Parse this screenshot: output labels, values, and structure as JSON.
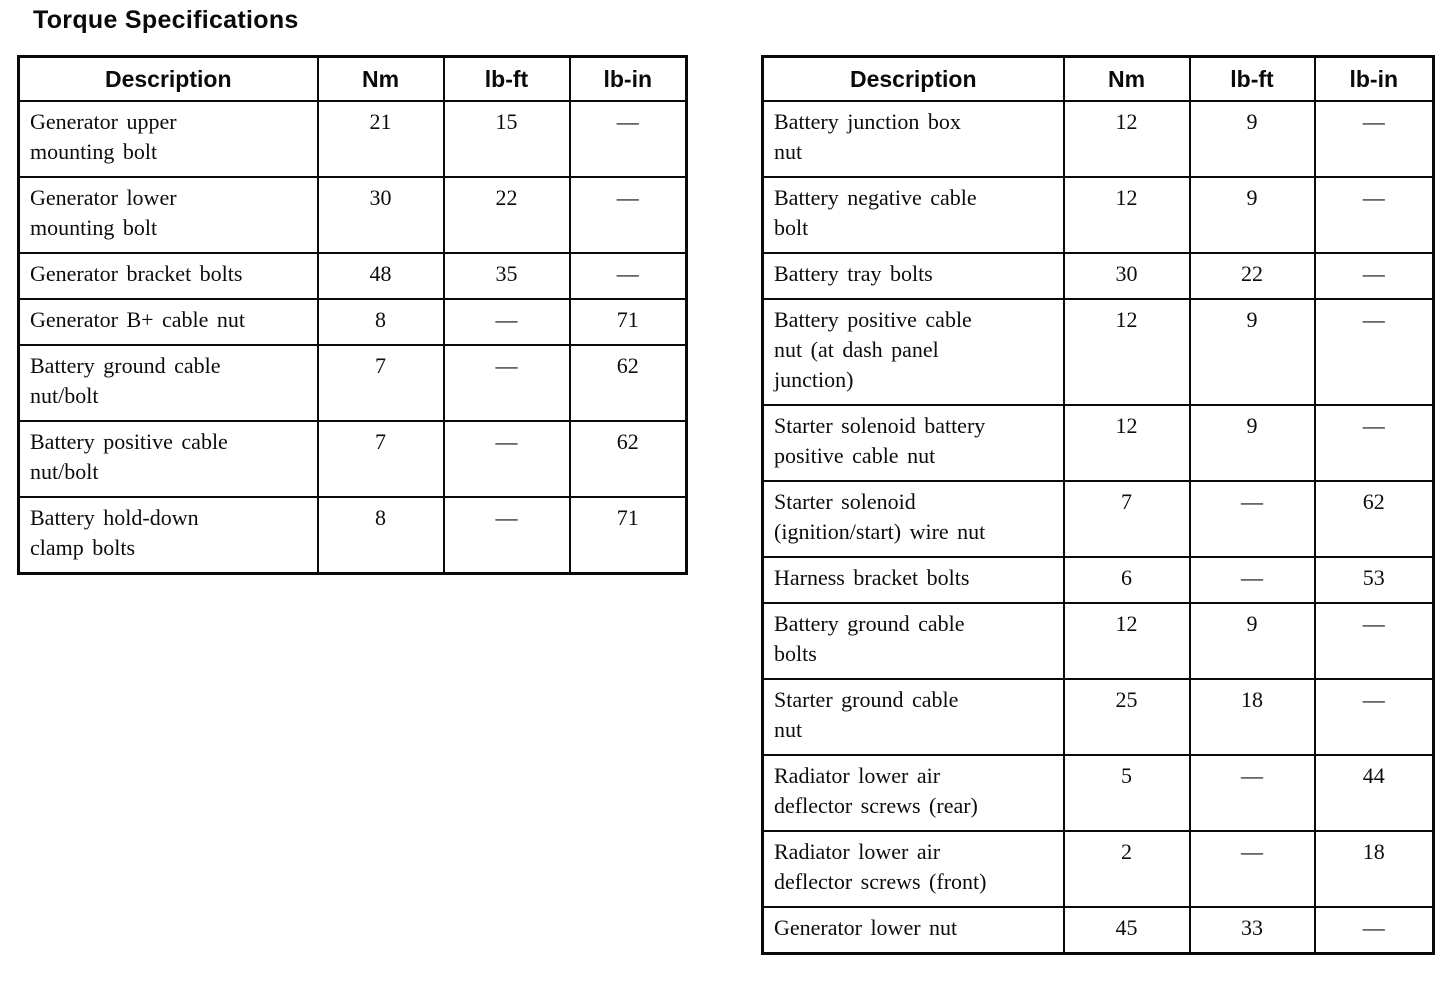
{
  "page_title": "Torque Specifications",
  "left_table": {
    "headers": [
      "Description",
      "Nm",
      "lb-ft",
      "lb-in"
    ],
    "rows": [
      {
        "description": "Generator upper\nmounting bolt",
        "nm": "21",
        "lb_ft": "15",
        "lb_in": "—"
      },
      {
        "description": "Generator lower\nmounting bolt",
        "nm": "30",
        "lb_ft": "22",
        "lb_in": "—"
      },
      {
        "description": "Generator bracket bolts",
        "nm": "48",
        "lb_ft": "35",
        "lb_in": "—"
      },
      {
        "description": "Generator B+ cable nut",
        "nm": "8",
        "lb_ft": "—",
        "lb_in": "71"
      },
      {
        "description": "Battery ground cable\nnut/bolt",
        "nm": "7",
        "lb_ft": "—",
        "lb_in": "62"
      },
      {
        "description": "Battery positive cable\nnut/bolt",
        "nm": "7",
        "lb_ft": "—",
        "lb_in": "62"
      },
      {
        "description": "Battery hold-down\nclamp bolts",
        "nm": "8",
        "lb_ft": "—",
        "lb_in": "71"
      }
    ]
  },
  "right_table": {
    "headers": [
      "Description",
      "Nm",
      "lb-ft",
      "lb-in"
    ],
    "rows": [
      {
        "description": "Battery junction box\nnut",
        "nm": "12",
        "lb_ft": "9",
        "lb_in": "—"
      },
      {
        "description": "Battery negative cable\nbolt",
        "nm": "12",
        "lb_ft": "9",
        "lb_in": "—"
      },
      {
        "description": "Battery tray bolts",
        "nm": "30",
        "lb_ft": "22",
        "lb_in": "—"
      },
      {
        "description": "Battery positive cable\nnut (at dash panel\njunction)",
        "nm": "12",
        "lb_ft": "9",
        "lb_in": "—"
      },
      {
        "description": "Starter solenoid battery\npositive cable nut",
        "nm": "12",
        "lb_ft": "9",
        "lb_in": "—"
      },
      {
        "description": "Starter solenoid\n(ignition/start) wire nut",
        "nm": "7",
        "lb_ft": "—",
        "lb_in": "62"
      },
      {
        "description": "Harness bracket bolts",
        "nm": "6",
        "lb_ft": "—",
        "lb_in": "53"
      },
      {
        "description": "Battery ground cable\nbolts",
        "nm": "12",
        "lb_ft": "9",
        "lb_in": "—"
      },
      {
        "description": "Starter ground cable\nnut",
        "nm": "25",
        "lb_ft": "18",
        "lb_in": "—"
      },
      {
        "description": "Radiator lower air\ndeflector screws (rear)",
        "nm": "5",
        "lb_ft": "—",
        "lb_in": "44"
      },
      {
        "description": "Radiator lower air\ndeflector screws (front)",
        "nm": "2",
        "lb_ft": "—",
        "lb_in": "18"
      },
      {
        "description": "Generator lower nut",
        "nm": "45",
        "lb_ft": "33",
        "lb_in": "—"
      }
    ]
  }
}
